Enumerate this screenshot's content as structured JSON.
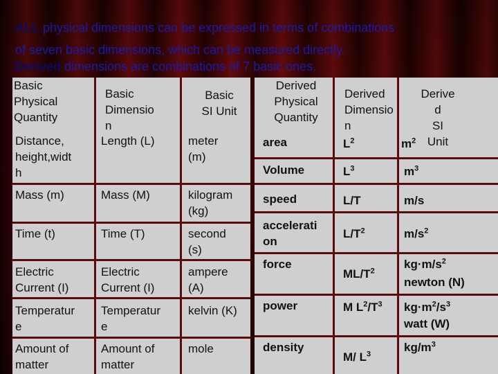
{
  "intro": {
    "line1_emph": "ALL",
    "line1_rest": " physical dimensions can be expressed in terms of combinations",
    "line2": "of seven basic dimensions, which can be measured directly.",
    "line3_emph": "Derived",
    "line3_rest": " dimensions are combinations of 7 basic ones."
  },
  "left_headers": {
    "basic_quantity": "Basic\nPhysical\nQuantity",
    "basic_dimension": "Basic\nDimensio\nn",
    "basic_si_unit": "Basic\nSI Unit"
  },
  "left_rows": [
    {
      "quantity": "Distance,\nheight,widt\nh",
      "dimension": "Length (L)",
      "unit": "meter\n(m)"
    },
    {
      "quantity": "Mass (m)",
      "dimension": "Mass (M)",
      "unit": "kilogram\n(kg)"
    },
    {
      "quantity": "Time (t)",
      "dimension": "Time (T)",
      "unit": "second\n(s)"
    },
    {
      "quantity": "Electric\nCurrent (I)",
      "dimension": "Electric\nCurrent (I)",
      "unit": "ampere\n(A)"
    },
    {
      "quantity": "Temperatur\ne",
      "dimension": "Temperatur\ne",
      "unit": "kelvin (K)"
    },
    {
      "quantity": "Amount of\nmatter",
      "dimension": "Amount of\nmatter",
      "unit": "mole"
    }
  ],
  "right_headers": {
    "derived_quantity": "Derived\nPhysical\nQuantity",
    "derived_dimension": "Derived\nDimensio\nn",
    "derived_si_unit": "Derive\nd\nSI\nUnit"
  },
  "right_rows": [
    {
      "quantity": "area",
      "dimension_base": "L",
      "dimension_exp": "2",
      "unit_base": "m",
      "unit_exp": "2",
      "unit_extra": ""
    },
    {
      "quantity": "Volume",
      "dimension_base": "L",
      "dimension_exp": "3",
      "unit_base": "m",
      "unit_exp": "3",
      "unit_extra": ""
    },
    {
      "quantity": "speed",
      "dimension_base": "L/T",
      "dimension_exp": "",
      "unit_base": "m/s",
      "unit_exp": "",
      "unit_extra": ""
    },
    {
      "quantity": "accelerati\non",
      "dimension_base": "L/T",
      "dimension_exp": "2",
      "unit_base": "m/s",
      "unit_exp": "2",
      "unit_extra": ""
    },
    {
      "quantity": "force",
      "dimension_base": "ML/T",
      "dimension_exp": "2",
      "unit_base": "kg·m/s",
      "unit_exp": "2",
      "unit_extra": "newton (N)"
    },
    {
      "quantity": "power",
      "dimension_base": "M L",
      "dimension_exp": "2",
      "dimension_tail": "/T",
      "dimension_exp2": "3",
      "unit_base": "kg·m",
      "unit_exp": "2",
      "unit_tail": "/s",
      "unit_exp2": "3",
      "unit_extra": "watt (W)"
    },
    {
      "quantity": "density",
      "dimension_base": "M/ L",
      "dimension_exp": "3",
      "unit_base": "kg/m",
      "unit_exp": "3",
      "unit_extra": ""
    }
  ],
  "colors": {
    "panel": "#cfcfcf",
    "grid": "#5a0a0a",
    "intro_text": "#1a1aa8",
    "intro_emph": "#0b0b60"
  }
}
